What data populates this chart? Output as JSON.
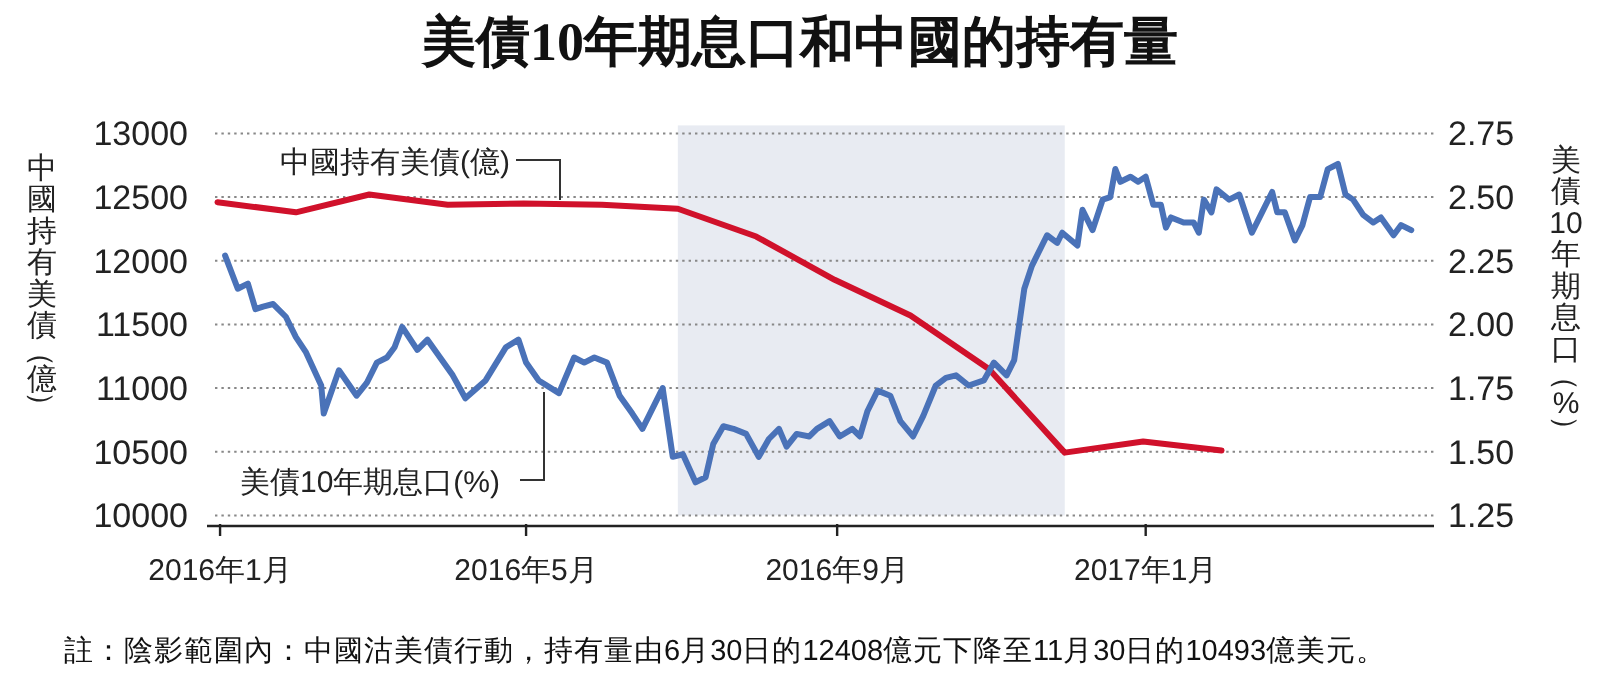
{
  "chart_data": {
    "type": "line",
    "title": "美債10年期息口和中國的持有量",
    "ylabel": "中國持有美債（億）",
    "y2label": "美債10年期息口（%）",
    "annotations": [
      "註：陰影範圍內：中國沽美債行動，持有量由6月30日的12408億元下降至11月30日的10493億美元。"
    ],
    "xlim": [
      "2015-12-30",
      "2017-04-25"
    ],
    "xticks": [
      {
        "value": "2016-01-01",
        "label": "2016年1月"
      },
      {
        "value": "2016-05-01",
        "label": "2016年5月"
      },
      {
        "value": "2016-09-01",
        "label": "2016年9月"
      },
      {
        "value": "2017-01-01",
        "label": "2017年1月"
      }
    ],
    "ylim": [
      10000,
      13000
    ],
    "yticks": [
      10000,
      10500,
      11000,
      11500,
      12000,
      12500,
      13000
    ],
    "y2lim": [
      1.25,
      2.75
    ],
    "y2ticks": [
      1.25,
      {
        "value": 1.5,
        "label": "1.50"
      },
      1.75,
      {
        "value": 2.0,
        "label": "2.00"
      },
      2.25,
      {
        "value": 2.5,
        "label": "2.50"
      },
      2.75
    ],
    "grid": "y",
    "bands": [
      {
        "axis": "x",
        "from": "2016-06-30",
        "to": "2016-11-30",
        "color": "#e8ebf2"
      }
    ],
    "series": [
      {
        "name": "中國持有美債(億)",
        "color": "#d0112b",
        "x": [
          "2015-12-31",
          "2016-01-31",
          "2016-02-29",
          "2016-03-31",
          "2016-04-30",
          "2016-05-31",
          "2016-06-30",
          "2016-07-31",
          "2016-08-31",
          "2016-09-30",
          "2016-10-31",
          "2016-11-30",
          "2016-12-31",
          "2017-01-31"
        ],
        "values": [
          12460,
          12380,
          12520,
          12440,
          12450,
          12440,
          12408,
          12190,
          11850,
          11570,
          11150,
          10493,
          10580,
          10510
        ]
      },
      {
        "name": "美債10年期息口(%)",
        "color": "#4a72b8",
        "axis": "y2",
        "x": [
          "2016-01-03",
          "2016-01-08",
          "2016-01-12",
          "2016-01-15",
          "2016-01-18",
          "2016-01-22",
          "2016-01-27",
          "2016-01-31",
          "2016-02-04",
          "2016-02-10",
          "2016-02-11",
          "2016-02-17",
          "2016-02-24",
          "2016-02-28",
          "2016-03-03",
          "2016-03-07",
          "2016-03-10",
          "2016-03-13",
          "2016-03-19",
          "2016-03-23",
          "2016-03-28",
          "2016-04-02",
          "2016-04-07",
          "2016-04-15",
          "2016-04-23",
          "2016-04-28",
          "2016-05-01",
          "2016-05-06",
          "2016-05-14",
          "2016-05-20",
          "2016-05-24",
          "2016-05-28",
          "2016-06-02",
          "2016-06-07",
          "2016-06-12",
          "2016-06-16",
          "2016-06-24",
          "2016-06-28",
          "2016-07-02",
          "2016-07-07",
          "2016-07-11",
          "2016-07-14",
          "2016-07-18",
          "2016-07-22",
          "2016-07-27",
          "2016-08-01",
          "2016-08-05",
          "2016-08-09",
          "2016-08-12",
          "2016-08-16",
          "2016-08-21",
          "2016-08-24",
          "2016-08-29",
          "2016-09-02",
          "2016-09-07",
          "2016-09-10",
          "2016-09-13",
          "2016-09-17",
          "2016-09-22",
          "2016-09-26",
          "2016-10-01",
          "2016-10-05",
          "2016-10-10",
          "2016-10-14",
          "2016-10-18",
          "2016-10-23",
          "2016-10-29",
          "2016-11-02",
          "2016-11-07",
          "2016-11-10",
          "2016-11-14",
          "2016-11-17",
          "2016-11-23",
          "2016-11-27",
          "2016-11-29",
          "2016-12-05",
          "2016-12-07",
          "2016-12-11",
          "2016-12-15",
          "2016-12-18",
          "2016-12-20",
          "2016-12-22",
          "2016-12-26",
          "2016-12-29",
          "2017-01-01",
          "2017-01-04",
          "2017-01-07",
          "2017-01-09",
          "2017-01-11",
          "2017-01-16",
          "2017-01-20",
          "2017-01-22",
          "2017-01-24",
          "2017-01-27",
          "2017-01-29",
          "2017-02-03",
          "2017-02-07",
          "2017-02-12",
          "2017-02-16",
          "2017-02-20",
          "2017-02-22",
          "2017-02-25",
          "2017-03-01",
          "2017-03-04",
          "2017-03-07",
          "2017-03-11",
          "2017-03-14",
          "2017-03-18",
          "2017-03-21",
          "2017-03-24",
          "2017-03-28",
          "2017-04-01",
          "2017-04-04",
          "2017-04-09",
          "2017-04-12",
          "2017-04-16"
        ],
        "values": [
          2.27,
          2.14,
          2.16,
          2.06,
          2.07,
          2.08,
          2.03,
          1.95,
          1.89,
          1.76,
          1.65,
          1.82,
          1.72,
          1.77,
          1.85,
          1.87,
          1.91,
          1.99,
          1.9,
          1.94,
          1.87,
          1.8,
          1.71,
          1.78,
          1.91,
          1.94,
          1.85,
          1.78,
          1.73,
          1.87,
          1.85,
          1.87,
          1.85,
          1.72,
          1.65,
          1.59,
          1.75,
          1.48,
          1.49,
          1.38,
          1.4,
          1.53,
          1.6,
          1.59,
          1.57,
          1.48,
          1.55,
          1.59,
          1.52,
          1.57,
          1.56,
          1.59,
          1.62,
          1.56,
          1.59,
          1.56,
          1.66,
          1.74,
          1.72,
          1.62,
          1.56,
          1.64,
          1.76,
          1.79,
          1.8,
          1.76,
          1.78,
          1.85,
          1.8,
          1.86,
          2.14,
          2.23,
          2.35,
          2.32,
          2.36,
          2.31,
          2.45,
          2.37,
          2.49,
          2.5,
          2.61,
          2.56,
          2.58,
          2.56,
          2.58,
          2.47,
          2.47,
          2.38,
          2.42,
          2.4,
          2.4,
          2.36,
          2.49,
          2.44,
          2.53,
          2.49,
          2.51,
          2.36,
          2.44,
          2.52,
          2.44,
          2.44,
          2.33,
          2.39,
          2.5,
          2.5,
          2.61,
          2.63,
          2.51,
          2.49,
          2.43,
          2.4,
          2.42,
          2.35,
          2.39,
          2.37
        ]
      }
    ]
  }
}
